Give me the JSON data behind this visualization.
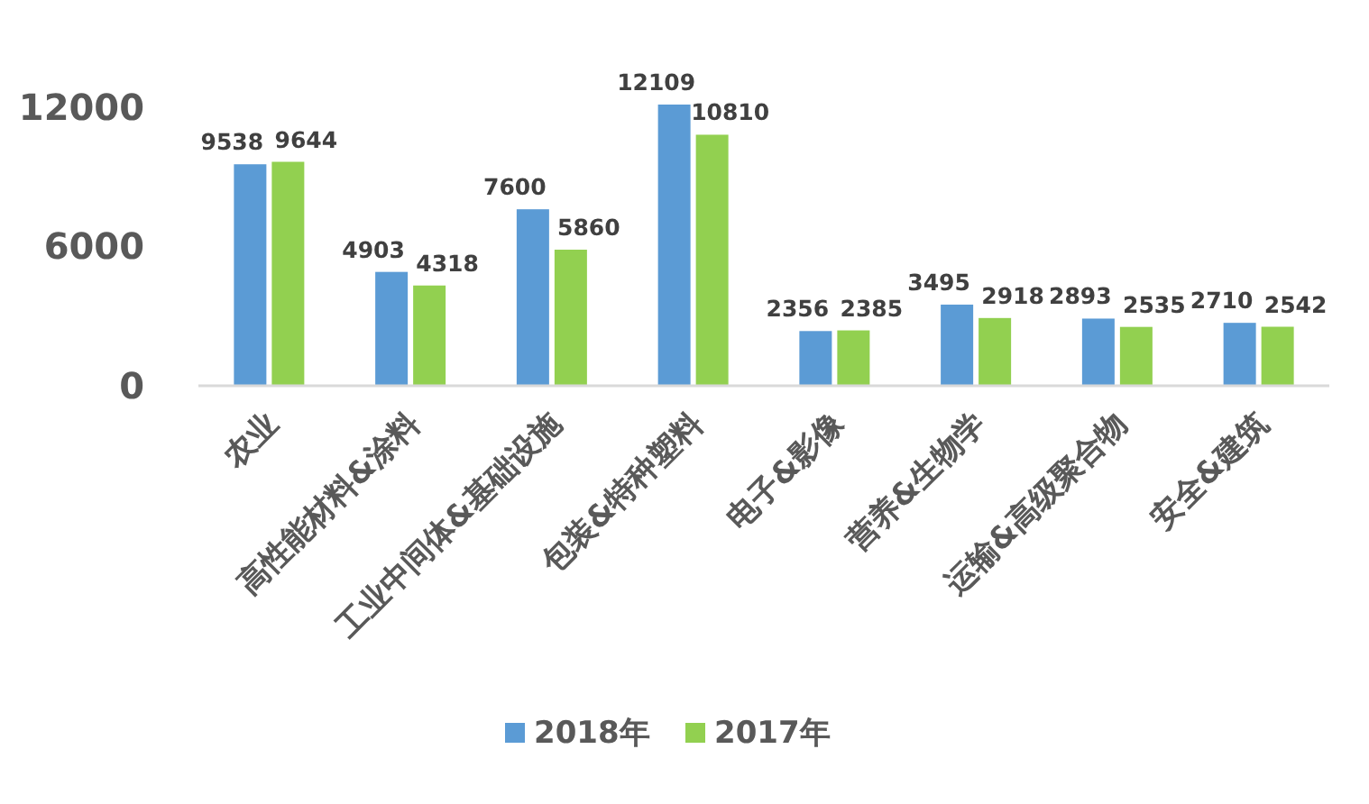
{
  "chart_data": {
    "type": "bar",
    "categories": [
      "农业",
      "高性能材料&涂料",
      "工业中间体&基础设施",
      "包装&特种塑料",
      "电子&影像",
      "营养&生物学",
      "运输&高级聚合物",
      "安全&建筑"
    ],
    "series": [
      {
        "name": "2018年",
        "color": "#5b9bd5",
        "values": [
          9538,
          4903,
          7600,
          12109,
          2356,
          3495,
          2893,
          2710
        ]
      },
      {
        "name": "2017年",
        "color": "#92d050",
        "values": [
          9644,
          4318,
          5860,
          10810,
          2385,
          2918,
          2535,
          2542
        ]
      }
    ],
    "ylim": [
      0,
      12109
    ],
    "yticks": [
      0,
      6000,
      12000
    ],
    "data_labels": true,
    "grid": false,
    "legend": "bottom"
  }
}
